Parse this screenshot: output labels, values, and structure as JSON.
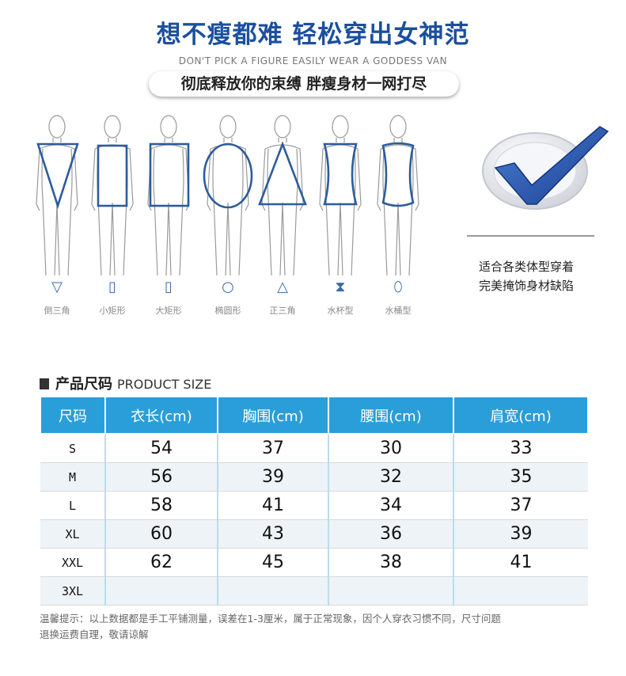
{
  "header": {
    "headline": "想不瘦都难 轻松穿出女神范",
    "subline": "DON'T PICK A FIGURE EASILY WEAR A GODDESS VAN",
    "pill": "彻底释放你的束缚 胖瘦身材一网打尽"
  },
  "body_types": [
    {
      "icon": "▽",
      "label": "倒三角"
    },
    {
      "icon": "▯",
      "label": "小矩形"
    },
    {
      "icon": "▯",
      "label": "大矩形"
    },
    {
      "icon": "○",
      "label": "椭圆形"
    },
    {
      "icon": "△",
      "label": "正三角"
    },
    {
      "icon": "⧗",
      "label": "水杯型"
    },
    {
      "icon": "⬯",
      "label": "水桶型"
    }
  ],
  "suitability": {
    "line1": "适合各类体型穿着",
    "line2": "完美掩饰身材缺陷",
    "accent": "#1b4fa0"
  },
  "size_table": {
    "title_cn": "产品尺码",
    "title_en": "PRODUCT SIZE",
    "headers": [
      "尺码",
      "衣长(cm)",
      "胸围(cm)",
      "腰围(cm)",
      "肩宽(cm)"
    ],
    "rows": [
      [
        "S",
        "54",
        "37",
        "30",
        "33"
      ],
      [
        "M",
        "56",
        "39",
        "32",
        "35"
      ],
      [
        "L",
        "58",
        "41",
        "34",
        "37"
      ],
      [
        "XL",
        "60",
        "43",
        "36",
        "39"
      ],
      [
        "XXL",
        "62",
        "45",
        "38",
        "41"
      ],
      [
        "3XL",
        "",
        "",
        "",
        ""
      ]
    ],
    "header_color": "#2a9ed9"
  },
  "note": {
    "line1": "温馨提示：以上数据都是手工平铺测量，误差在1-3厘米，属于正常现象，因个人穿衣习惯不同，尺寸问题",
    "line2": "退换运费自理，敬请谅解"
  }
}
